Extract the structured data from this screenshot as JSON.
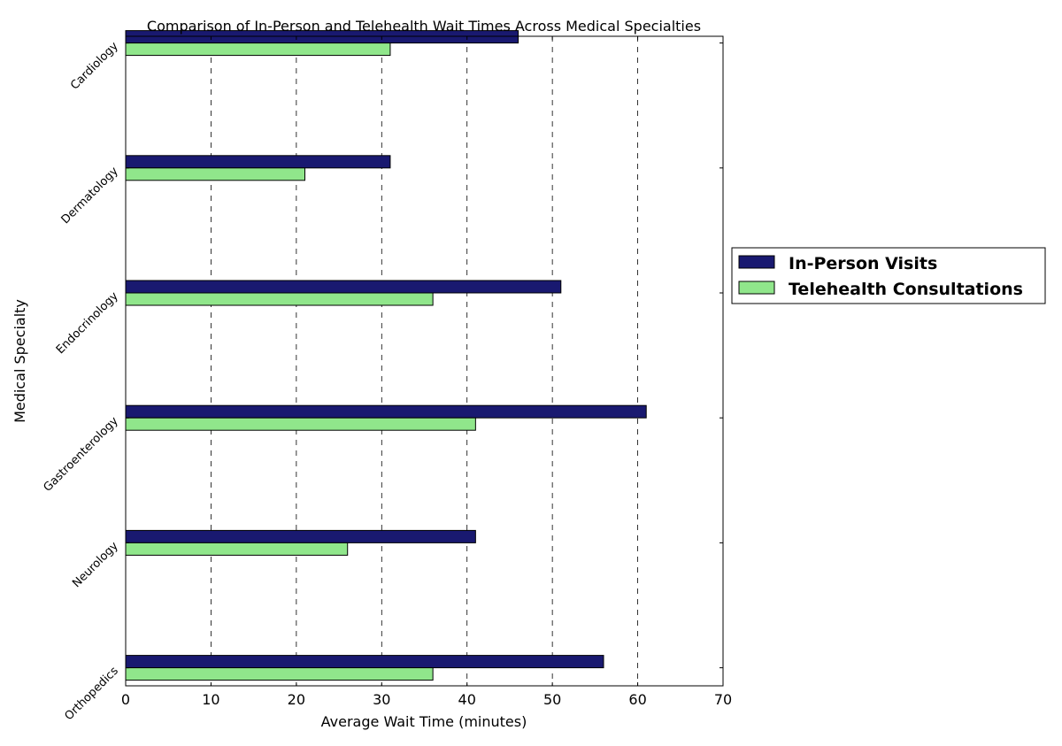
{
  "chart_data": {
    "type": "bar",
    "orientation": "horizontal",
    "title": "Comparison of In-Person and Telehealth Wait Times Across Medical Specialties",
    "xlabel": "Average Wait Time (minutes)",
    "ylabel": "Medical Specialty",
    "xlim": [
      0,
      70
    ],
    "x_ticks": [
      "0",
      "10",
      "20",
      "30",
      "40",
      "50",
      "60",
      "70"
    ],
    "grid": "vertical dashed",
    "legend_placement": "outside-right",
    "categories": [
      "Cardiology",
      "Dermatology",
      "Endocrinology",
      "Gastroenterology",
      "Neurology",
      "Orthopedics"
    ],
    "series": [
      {
        "name": "In-Person Visits",
        "color": "#191970",
        "values": [
          46,
          31,
          51,
          61,
          41,
          56
        ]
      },
      {
        "name": "Telehealth Consultations",
        "color": "#90e68b",
        "values": [
          31,
          21,
          36,
          41,
          26,
          36
        ]
      }
    ]
  }
}
